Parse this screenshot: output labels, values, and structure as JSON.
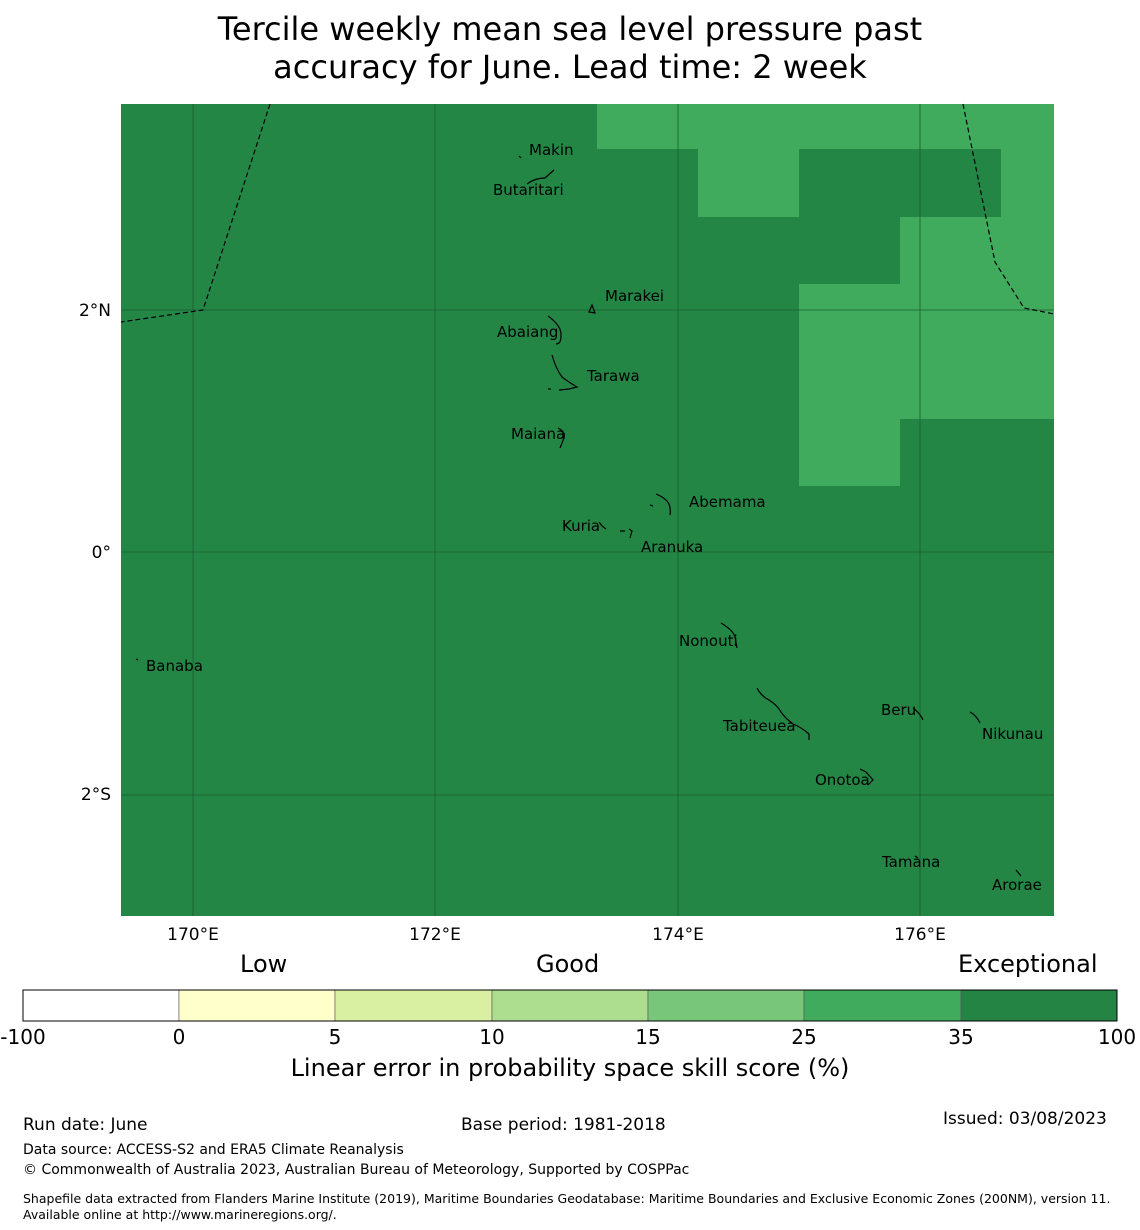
{
  "title_line1": "Tercile weekly mean sea level pressure past",
  "title_line2": "accuracy for June. Lead time: 2 week",
  "map": {
    "lat_labels": [
      "2°N",
      "0°",
      "2°S"
    ],
    "lon_labels": [
      "170°E",
      "172°E",
      "174°E",
      "176°E"
    ],
    "islands": [
      "Makin",
      "Butaritari",
      "Marakei",
      "Abaiang",
      "Tarawa",
      "Maiana",
      "Abemama",
      "Kuria",
      "Aranuka",
      "Banaba",
      "Nonouti",
      "Beru",
      "Tabiteuea",
      "Nikunau",
      "Onotoa",
      "Tamana",
      "Arorae"
    ],
    "colors": {
      "exceptional": "#248645",
      "band_25_35": "#41ab5d"
    }
  },
  "colorbar": {
    "categories": [
      "Low",
      "Good",
      "Exceptional"
    ],
    "ticks": [
      "-100",
      "0",
      "5",
      "10",
      "15",
      "25",
      "35",
      "100"
    ],
    "colors": [
      "#ffffff",
      "#ffffcc",
      "#d9f0a3",
      "#addd8e",
      "#78c679",
      "#41ab5d",
      "#238443"
    ],
    "label": "Linear error in probability space skill score (%)"
  },
  "footer": {
    "run_date": "Run date: June",
    "base_period": "Base period: 1981-2018",
    "issued": "Issued: 03/08/2023",
    "data_source": "Data source: ACCESS-S2 and ERA5 Climate Reanalysis",
    "copyright": "© Commonwealth of Australia 2023, Australian Bureau of Meteorology, Supported by COSPPac",
    "shapefile": "Shapefile data extracted from Flanders Marine Institute (2019), Maritime Boundaries Geodatabase: Maritime Boundaries and Exclusive Economic Zones (200NM), version 11. Available online at http://www.marineregions.org/."
  }
}
